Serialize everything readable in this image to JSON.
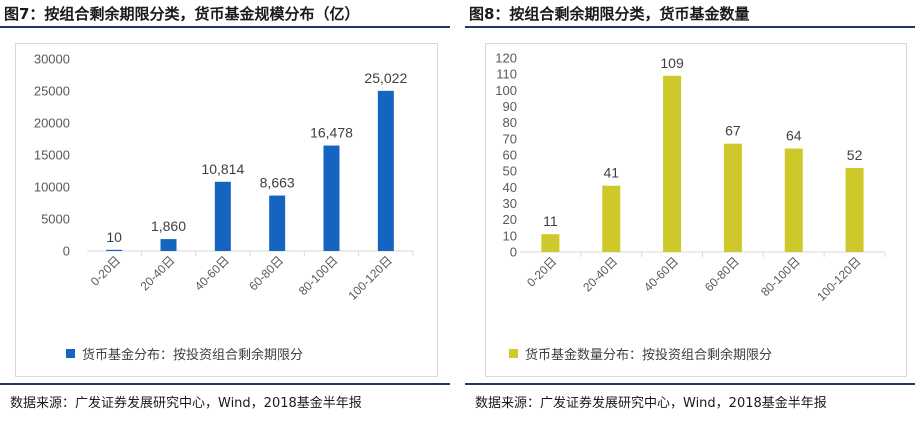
{
  "colors": {
    "left_bar": "#1565c0",
    "right_bar": "#cfc82b",
    "rule": "#1f3864"
  },
  "left": {
    "title": "图7：按组合剩余期限分类，货币基金规模分布（亿）",
    "legend": "货币基金分布：按投资组合剩余期限分",
    "source": "数据来源：广发证券发展研究中心，Wind，2018基金半年报"
  },
  "right": {
    "title": "图8：按组合剩余期限分类，货币基金数量",
    "legend": "货币基金数量分布：按投资组合剩余期限分",
    "source": "数据来源：广发证券发展研究中心，Wind，2018基金半年报"
  },
  "chart_data": [
    {
      "type": "bar",
      "title": "图7：按组合剩余期限分类，货币基金规模分布（亿）",
      "categories": [
        "0-20日",
        "20-40日",
        "40-60日",
        "60-80日",
        "80-100日",
        "100-120日"
      ],
      "series": [
        {
          "name": "货币基金分布：按投资组合剩余期限分",
          "values": [
            10,
            1860,
            10814,
            8663,
            16478,
            25022
          ]
        }
      ],
      "data_labels": [
        "10",
        "1,860",
        "10,814",
        "8,663",
        "16,478",
        "25,022"
      ],
      "yticks": [
        "0",
        "5000",
        "10000",
        "15000",
        "20000",
        "25000",
        "30000"
      ],
      "ylim": [
        0,
        30000
      ],
      "grid": false,
      "legend": "bottom"
    },
    {
      "type": "bar",
      "title": "图8：按组合剩余期限分类，货币基金数量",
      "categories": [
        "0-20日",
        "20-40日",
        "40-60日",
        "60-80日",
        "80-100日",
        "100-120日"
      ],
      "series": [
        {
          "name": "货币基金数量分布：按投资组合剩余期限分",
          "values": [
            11,
            41,
            109,
            67,
            64,
            52
          ]
        }
      ],
      "data_labels": [
        "11",
        "41",
        "109",
        "67",
        "64",
        "52"
      ],
      "yticks": [
        "0",
        "10",
        "20",
        "30",
        "40",
        "50",
        "60",
        "70",
        "80",
        "90",
        "100",
        "110",
        "120"
      ],
      "ylim": [
        0,
        120
      ],
      "grid": false,
      "legend": "bottom"
    }
  ]
}
